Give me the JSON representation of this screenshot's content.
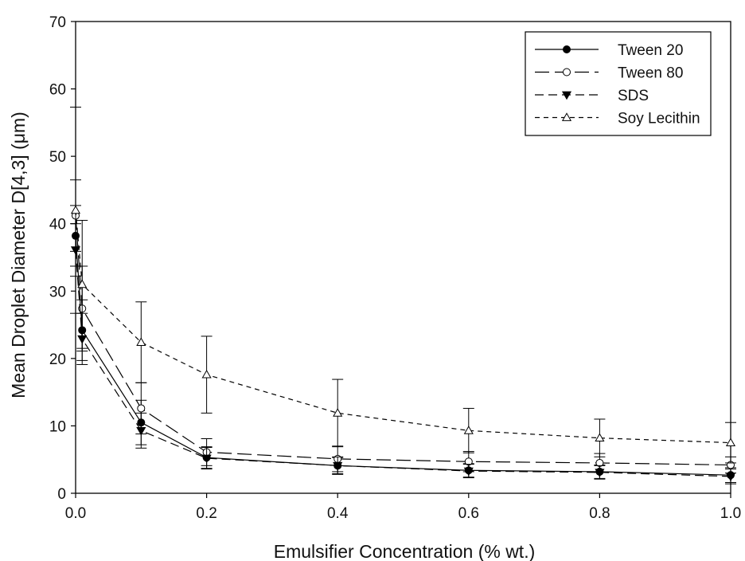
{
  "chart_data": {
    "type": "line",
    "xlabel": "Emulsifier Concentration (% wt.)",
    "ylabel": "Mean Droplet Diameter D[4,3] (μm)",
    "xlim": [
      0.0,
      1.0
    ],
    "ylim": [
      0,
      70
    ],
    "x_ticks": [
      "0.0",
      "0.2",
      "0.4",
      "0.6",
      "0.8",
      "1.0"
    ],
    "y_ticks": [
      "0",
      "10",
      "20",
      "30",
      "40",
      "50",
      "60",
      "70"
    ],
    "grid": false,
    "legend_position": "top-right",
    "x": [
      0.0,
      0.01,
      0.1,
      0.2,
      0.4,
      0.6,
      0.8,
      1.0
    ],
    "series": [
      {
        "name": "Tween 20",
        "marker": "filled-circle",
        "line": "solid",
        "values": [
          38.2,
          24.2,
          10.5,
          5.3,
          4.1,
          3.4,
          3.2,
          2.7
        ],
        "errors": [
          4.5,
          4.5,
          3.3,
          1.6,
          1.2,
          1.0,
          1.0,
          1.1
        ]
      },
      {
        "name": "Tween 80",
        "marker": "open-circle",
        "line": "long-dash",
        "values": [
          41.2,
          27.4,
          12.6,
          6.1,
          5.1,
          4.7,
          4.5,
          4.2
        ],
        "errors": [
          5.3,
          6.3,
          3.8,
          2.0,
          1.9,
          1.5,
          1.4,
          1.2
        ]
      },
      {
        "name": "SDS",
        "marker": "filled-triangle-down",
        "line": "dash",
        "values": [
          36.1,
          22.9,
          9.3,
          5.2,
          4.1,
          3.3,
          3.1,
          2.5
        ],
        "errors": [
          3.9,
          3.8,
          2.6,
          1.6,
          1.3,
          1.0,
          1.0,
          1.1
        ]
      },
      {
        "name": "Soy Lecithin",
        "marker": "open-triangle-up",
        "line": "short-dash",
        "values": [
          42.0,
          31.0,
          22.4,
          17.6,
          11.9,
          9.3,
          8.2,
          7.5
        ],
        "errors": [
          15.3,
          9.5,
          6.0,
          5.7,
          5.0,
          3.3,
          2.8,
          3.0
        ]
      }
    ]
  }
}
